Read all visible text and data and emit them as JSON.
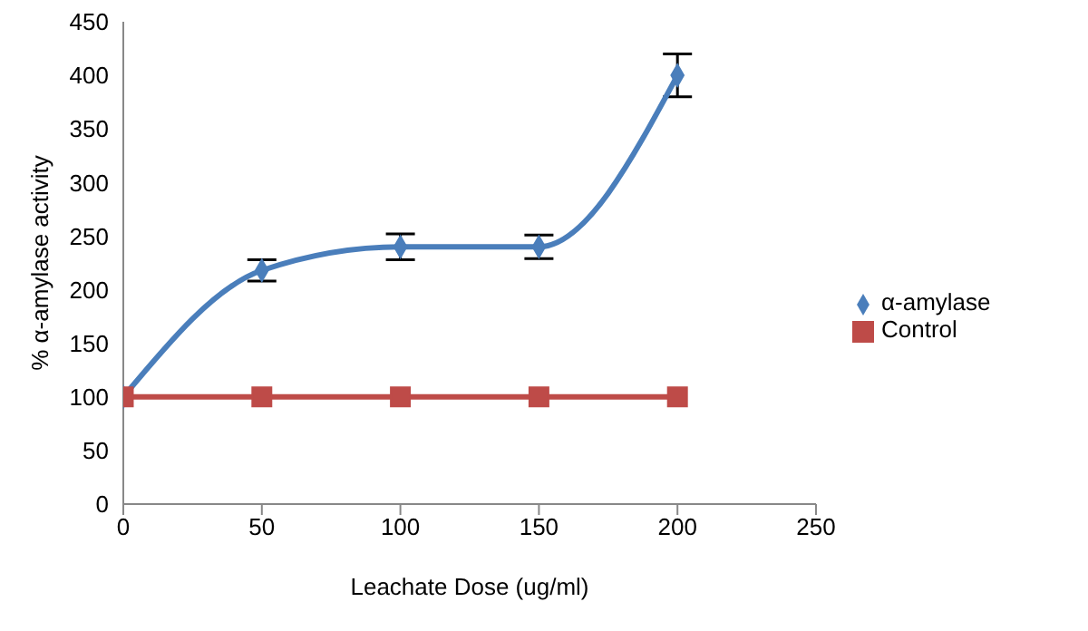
{
  "chart_data": {
    "type": "line",
    "xlabel": "Leachate Dose (ug/ml)",
    "ylabel": "% α-amylase activity",
    "x": [
      0,
      50,
      100,
      150,
      200
    ],
    "series": [
      {
        "name": "α-amylase",
        "color": "#4a7ebb",
        "values": [
          100,
          218,
          240,
          240,
          400
        ],
        "errors": [
          null,
          10,
          12,
          11,
          20
        ],
        "marker": "diamond"
      },
      {
        "name": "Control",
        "color": "#be4b48",
        "values": [
          100,
          100,
          100,
          100,
          100
        ],
        "marker": "square"
      }
    ],
    "xlim": [
      0,
      250
    ],
    "xticks": [
      0,
      50,
      100,
      150,
      200,
      250
    ],
    "ylim": [
      0,
      450
    ],
    "yticks": [
      0,
      50,
      100,
      150,
      200,
      250,
      300,
      350,
      400,
      450
    ],
    "grid": false,
    "legend": "right",
    "line_style": "solid"
  }
}
